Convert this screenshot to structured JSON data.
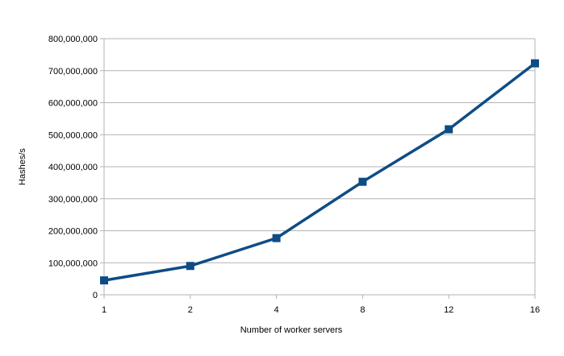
{
  "chart_data": {
    "type": "line",
    "title": "",
    "xlabel": "Number of worker servers",
    "ylabel": "Hashes/s",
    "categories": [
      "1",
      "2",
      "4",
      "8",
      "12",
      "16"
    ],
    "series": [
      {
        "values": [
          45000000,
          90000000,
          177000000,
          353000000,
          517000000,
          723000000
        ]
      }
    ],
    "y_tick_labels": [
      "0",
      "100,000,000",
      "200,000,000",
      "300,000,000",
      "400,000,000",
      "500,000,000",
      "600,000,000",
      "700,000,000",
      "800,000,000"
    ],
    "y_ticks": [
      0,
      100000000,
      200000000,
      300000000,
      400000000,
      500000000,
      600000000,
      700000000,
      800000000
    ],
    "ylim": [
      0,
      800000000
    ],
    "grid": "horizontal",
    "legend": "none",
    "series_color": "#0e4c86",
    "marker": "square"
  }
}
